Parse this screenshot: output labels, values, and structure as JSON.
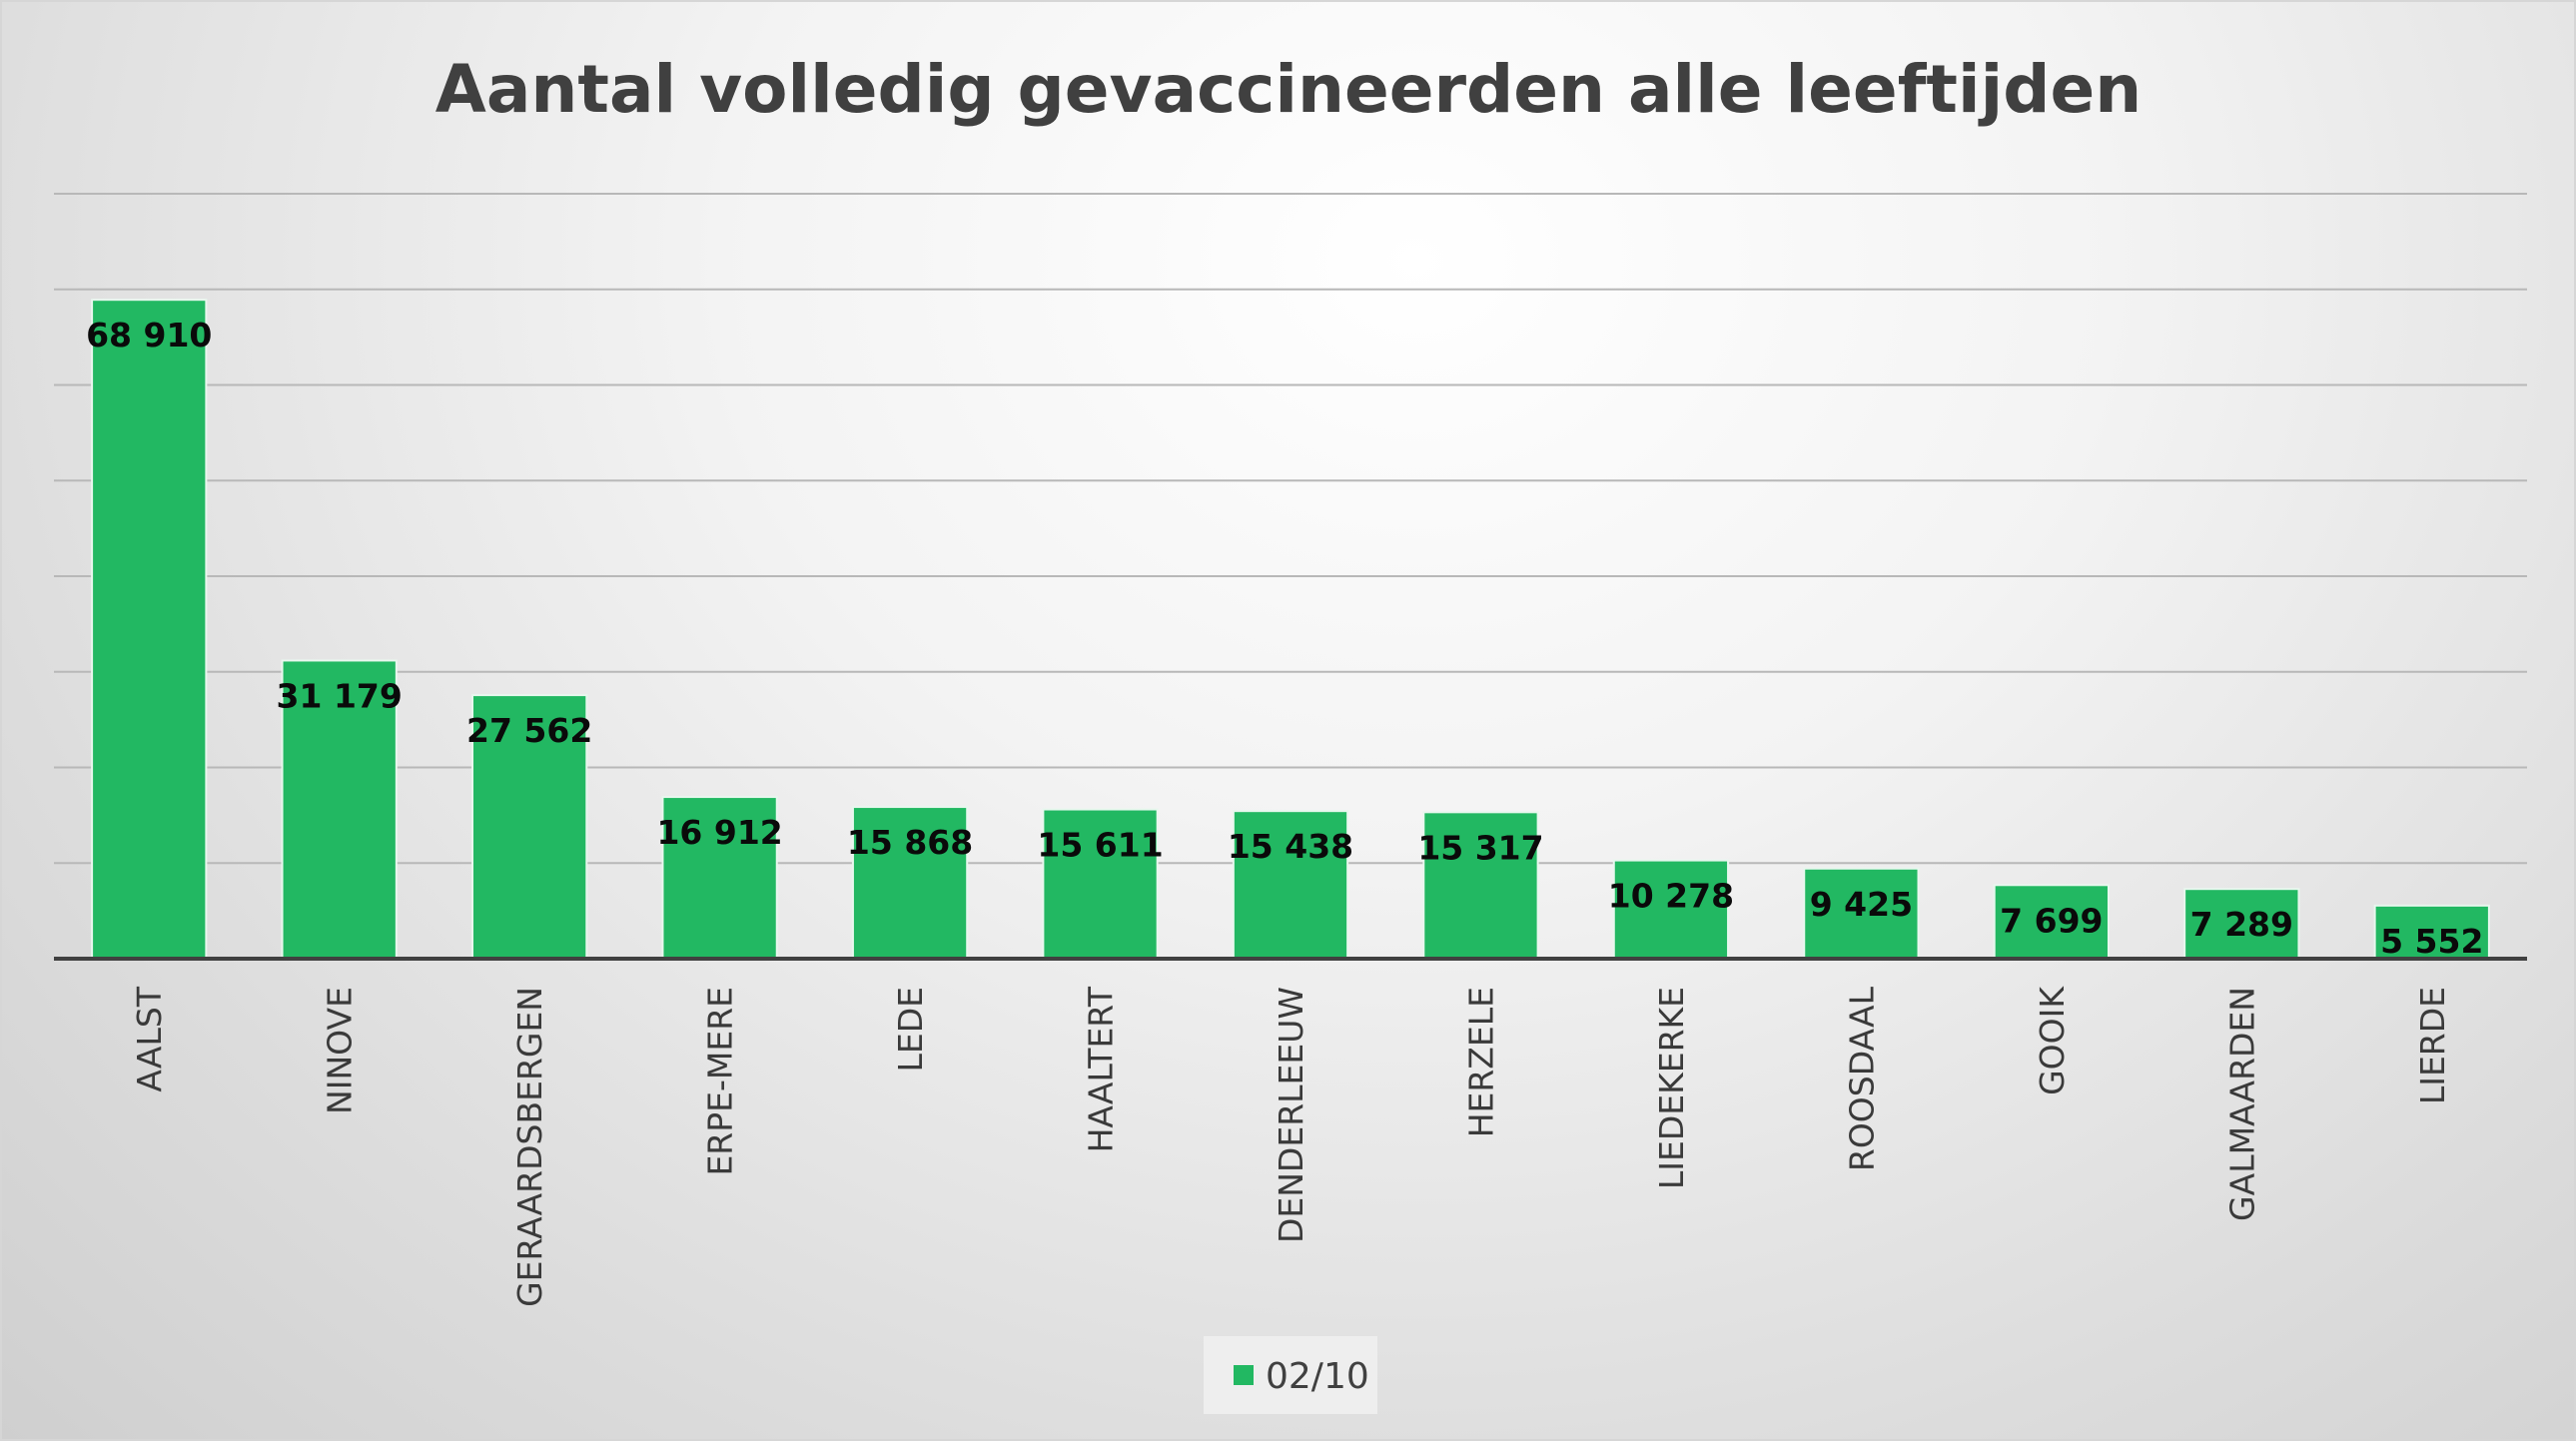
{
  "colors": {
    "bar": "#22b862",
    "bar_stroke": "#e8f7ee",
    "grid": "#b8b8b8",
    "axis": "#404040",
    "title": "#404040",
    "legend_bg": "#eeeeee"
  },
  "chart_data": {
    "type": "bar",
    "title": "Aantal volledig gevaccineerden alle leeftijden",
    "xlabel": "",
    "ylabel": "",
    "ylim": [
      0,
      80000
    ],
    "y_gridline_step": 10000,
    "y_tick_labels_visible": false,
    "grid": true,
    "legend_position": "bottom",
    "categories": [
      "AALST",
      "NINOVE",
      "GERAARDSBERGEN",
      "ERPE-MERE",
      "LEDE",
      "HAALTERT",
      "DENDERLEEUW",
      "HERZELE",
      "LIEDEKERKE",
      "ROOSDAAL",
      "GOOIK",
      "GALMAARDEN",
      "LIERDE"
    ],
    "series": [
      {
        "name": "02/10",
        "values": [
          68910,
          31179,
          27562,
          16912,
          15868,
          15611,
          15438,
          15317,
          10278,
          9425,
          7699,
          7289,
          5552
        ],
        "labels": [
          "68 910",
          "31 179",
          "27 562",
          "16 912",
          "15 868",
          "15 611",
          "15 438",
          "15 317",
          "10 278",
          "9 425",
          "7 699",
          "7 289",
          "5 552"
        ]
      }
    ]
  }
}
